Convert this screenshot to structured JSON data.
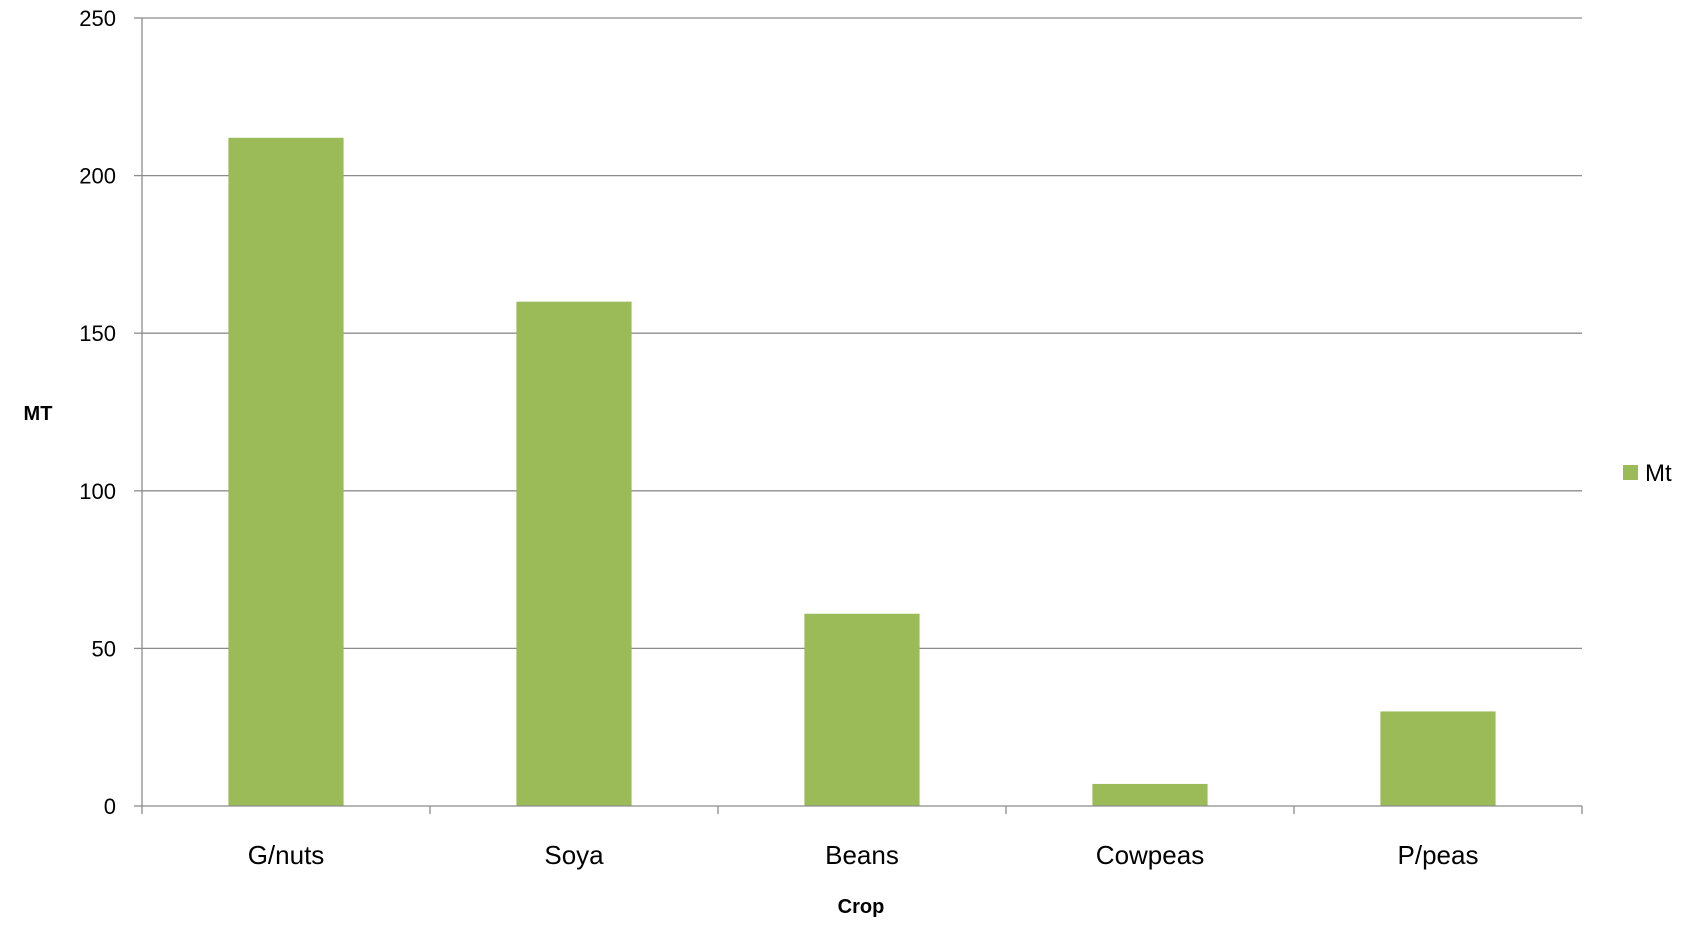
{
  "chart_data": {
    "type": "bar",
    "title": "",
    "xlabel": "Crop",
    "ylabel": "MT",
    "categories": [
      "G/nuts",
      "Soya",
      "Beans",
      "Cowpeas",
      "P/peas"
    ],
    "series": [
      {
        "name": "Mt",
        "values": [
          212,
          160,
          61,
          7,
          30
        ],
        "color": "#9BBB59"
      }
    ],
    "ylim": [
      0,
      250
    ],
    "yticks": [
      0,
      50,
      100,
      150,
      200,
      250
    ],
    "grid": true,
    "legend": "right"
  }
}
